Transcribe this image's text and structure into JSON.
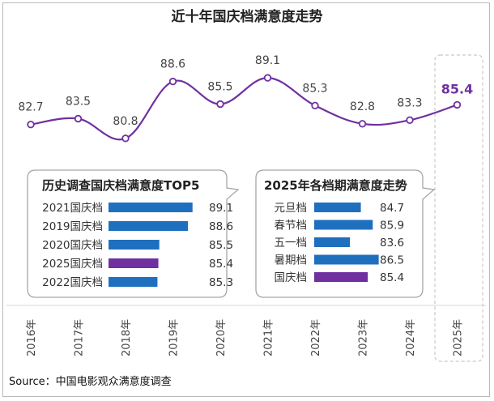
{
  "colors": {
    "line": "#7030a0",
    "bar": "#1f6fbf",
    "highlight": "#7030a0"
  },
  "chart_data": [
    {
      "type": "line",
      "title": "近十年国庆档满意度走势",
      "categories": [
        "2016年",
        "2017年",
        "2018年",
        "2019年",
        "2020年",
        "2021年",
        "2022年",
        "2023年",
        "2024年",
        "2025年"
      ],
      "values": [
        82.7,
        83.5,
        80.8,
        88.6,
        85.5,
        89.1,
        85.3,
        82.8,
        83.3,
        85.4
      ],
      "value_labels": [
        "82.7",
        "83.5",
        "80.8",
        "88.6",
        "85.5",
        "89.1",
        "85.3",
        "82.8",
        "83.3",
        "85.4"
      ],
      "highlight_index": 9,
      "xlabel": "",
      "ylabel": "",
      "ylim": [
        74,
        94
      ],
      "grid": false,
      "legend": "none"
    },
    {
      "type": "bar",
      "title": "历史调查国庆档满意度TOP5",
      "orientation": "horizontal",
      "categories": [
        "2021国庆档",
        "2019国庆档",
        "2020国庆档",
        "2025国庆档",
        "2022国庆档"
      ],
      "values": [
        89.1,
        88.6,
        85.5,
        85.4,
        85.3
      ],
      "value_labels": [
        "89.1",
        "88.6",
        "85.5",
        "85.4",
        "85.3"
      ],
      "highlight_index": 3,
      "xlim": [
        80,
        90
      ]
    },
    {
      "type": "bar",
      "title": "2025年各档期满意度走势",
      "orientation": "horizontal",
      "categories": [
        "元旦档",
        "春节档",
        "五一档",
        "暑期档",
        "国庆档"
      ],
      "values": [
        84.7,
        85.9,
        83.6,
        86.5,
        85.4
      ],
      "value_labels": [
        "84.7",
        "85.9",
        "83.6",
        "86.5",
        "85.4"
      ],
      "highlight_index": 4,
      "xlim": [
        80,
        88
      ]
    }
  ],
  "source": "Source：中国电影观众满意度调查"
}
